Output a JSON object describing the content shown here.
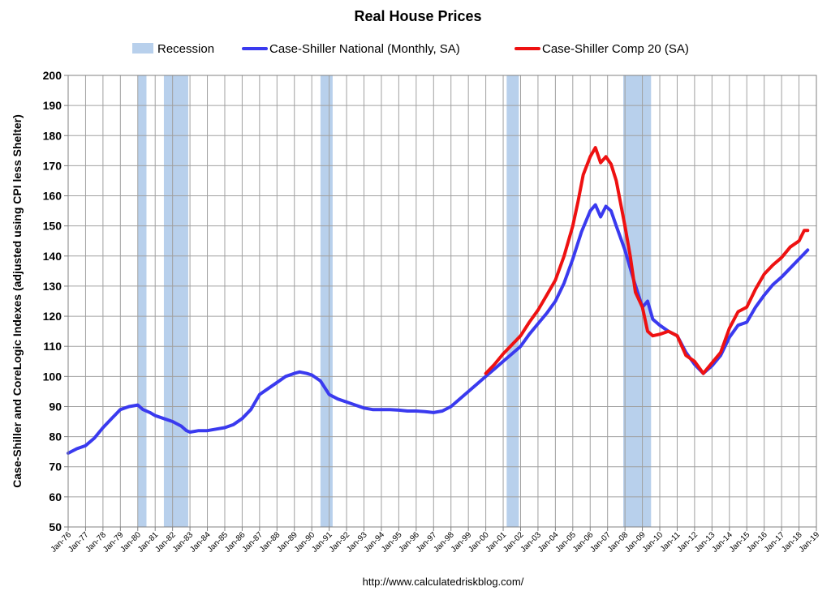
{
  "chart_data": {
    "type": "line",
    "title": "Real House Prices",
    "ylabel": "Case-Shiller and CoreLogic Indexes (adjusted using CPI less Shelter)",
    "xlabel": "",
    "source": "http://www.calculatedriskblog.com/",
    "ylim": [
      50,
      200
    ],
    "yticks": [
      50,
      60,
      70,
      80,
      90,
      100,
      110,
      120,
      130,
      140,
      150,
      160,
      170,
      180,
      190,
      200
    ],
    "xlim": [
      1976.0,
      2019.0
    ],
    "xtick_labels": [
      "Jan-76",
      "Jan-77",
      "Jan-78",
      "Jan-79",
      "Jan-80",
      "Jan-81",
      "Jan-82",
      "Jan-83",
      "Jan-84",
      "Jan-85",
      "Jan-86",
      "Jan-87",
      "Jan-88",
      "Jan-89",
      "Jan-90",
      "Jan-91",
      "Jan-92",
      "Jan-93",
      "Jan-94",
      "Jan-95",
      "Jan-96",
      "Jan-97",
      "Jan-98",
      "Jan-99",
      "Jan-00",
      "Jan-01",
      "Jan-02",
      "Jan-03",
      "Jan-04",
      "Jan-05",
      "Jan-06",
      "Jan-07",
      "Jan-08",
      "Jan-09",
      "Jan-10",
      "Jan-11",
      "Jan-12",
      "Jan-13",
      "Jan-14",
      "Jan-15",
      "Jan-16",
      "Jan-17",
      "Jan-18",
      "Jan-19"
    ],
    "grid": true,
    "legend": [
      {
        "label": "Recession",
        "kind": "area",
        "color": "#b8d0ec"
      },
      {
        "label": "Case-Shiller National (Monthly, SA)",
        "kind": "line",
        "color": "#3a3aef"
      },
      {
        "label": "Case-Shiller Comp 20  (SA)",
        "kind": "line",
        "color": "#ee1111"
      }
    ],
    "recessions": [
      [
        1980.0,
        1980.5
      ],
      [
        1981.5,
        1982.9
      ],
      [
        1990.5,
        1991.2
      ],
      [
        2001.2,
        2001.9
      ],
      [
        2007.9,
        2009.5
      ]
    ],
    "series": [
      {
        "name": "Case-Shiller National (Monthly, SA)",
        "color": "#3a3aef",
        "x": [
          1976.0,
          1976.5,
          1977.0,
          1977.5,
          1978.0,
          1978.5,
          1979.0,
          1979.5,
          1980.0,
          1980.3,
          1980.7,
          1981.0,
          1981.5,
          1982.0,
          1982.5,
          1982.8,
          1983.0,
          1983.5,
          1984.0,
          1984.5,
          1985.0,
          1985.5,
          1986.0,
          1986.5,
          1987.0,
          1987.5,
          1988.0,
          1988.5,
          1989.0,
          1989.3,
          1989.7,
          1990.0,
          1990.5,
          1991.0,
          1991.5,
          1992.0,
          1992.5,
          1993.0,
          1993.5,
          1994.0,
          1994.5,
          1995.0,
          1995.5,
          1996.0,
          1996.5,
          1997.0,
          1997.5,
          1998.0,
          1998.5,
          1999.0,
          1999.5,
          2000.0,
          2000.5,
          2001.0,
          2001.5,
          2002.0,
          2002.5,
          2003.0,
          2003.5,
          2004.0,
          2004.5,
          2005.0,
          2005.5,
          2006.0,
          2006.3,
          2006.6,
          2006.9,
          2007.2,
          2007.5,
          2008.0,
          2008.5,
          2009.0,
          2009.3,
          2009.6,
          2010.0,
          2010.5,
          2011.0,
          2011.5,
          2012.0,
          2012.5,
          2013.0,
          2013.5,
          2014.0,
          2014.5,
          2015.0,
          2015.5,
          2016.0,
          2016.5,
          2017.0,
          2017.5,
          2018.0,
          2018.5
        ],
        "values": [
          74.5,
          76.0,
          77.0,
          79.5,
          83.0,
          86.0,
          89.0,
          90.0,
          90.5,
          89.0,
          88.0,
          87.0,
          86.0,
          85.0,
          83.5,
          82.0,
          81.5,
          82.0,
          82.0,
          82.5,
          83.0,
          84.0,
          86.0,
          89.0,
          94.0,
          96.0,
          98.0,
          100.0,
          101.0,
          101.5,
          101.0,
          100.5,
          98.5,
          94.0,
          92.5,
          91.5,
          90.5,
          89.5,
          89.0,
          89.0,
          89.0,
          88.8,
          88.5,
          88.5,
          88.3,
          88.0,
          88.5,
          90.0,
          92.5,
          95.0,
          97.5,
          100.0,
          102.5,
          105.0,
          107.5,
          110.0,
          114.0,
          117.5,
          121.0,
          125.0,
          131.0,
          139.0,
          148.0,
          155.0,
          157.0,
          153.0,
          156.5,
          155.0,
          150.0,
          142.0,
          132.0,
          123.0,
          125.0,
          119.0,
          117.0,
          115.0,
          113.5,
          108.0,
          104.0,
          101.0,
          103.5,
          107.0,
          113.0,
          117.0,
          118.0,
          123.0,
          127.0,
          130.5,
          133.0,
          136.0,
          139.0,
          142.0
        ]
      },
      {
        "name": "Case-Shiller Comp 20  (SA)",
        "color": "#ee1111",
        "x": [
          2000.0,
          2000.5,
          2001.0,
          2001.5,
          2002.0,
          2002.5,
          2003.0,
          2003.5,
          2004.0,
          2004.5,
          2005.0,
          2005.3,
          2005.6,
          2006.0,
          2006.3,
          2006.6,
          2006.9,
          2007.2,
          2007.5,
          2008.0,
          2008.3,
          2008.6,
          2009.0,
          2009.3,
          2009.6,
          2010.0,
          2010.5,
          2011.0,
          2011.5,
          2012.0,
          2012.5,
          2013.0,
          2013.5,
          2014.0,
          2014.5,
          2015.0,
          2015.5,
          2016.0,
          2016.5,
          2017.0,
          2017.5,
          2018.0,
          2018.3,
          2018.5
        ],
        "values": [
          101.0,
          104.0,
          107.5,
          110.5,
          113.5,
          118.0,
          122.0,
          127.0,
          132.0,
          140.0,
          150.0,
          158.0,
          167.0,
          173.0,
          176.0,
          171.0,
          173.0,
          170.5,
          165.0,
          150.0,
          140.0,
          128.0,
          123.0,
          115.0,
          113.5,
          114.0,
          115.0,
          113.5,
          107.0,
          105.0,
          101.0,
          104.5,
          108.0,
          116.0,
          121.5,
          123.0,
          129.0,
          134.0,
          137.0,
          139.5,
          143.0,
          145.0,
          148.5,
          148.5
        ]
      }
    ]
  }
}
